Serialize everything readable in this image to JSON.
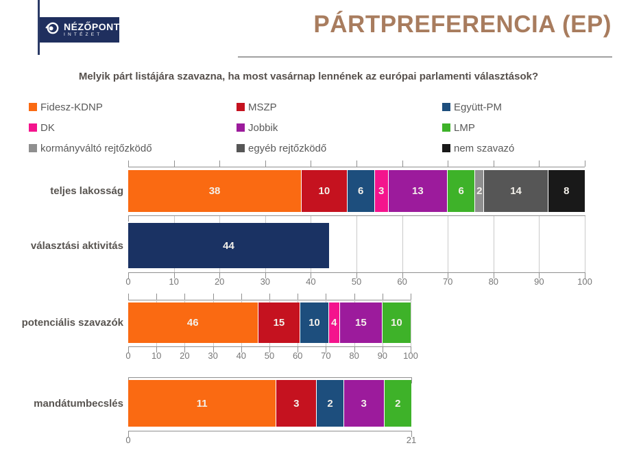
{
  "header": {
    "logo_line1": "NÉZŐPONT",
    "logo_line2": "INTÉZET",
    "title": "PÁRTPREFERENCIA (EP)"
  },
  "subtitle": "Melyik párt listájára szavazna, ha most vasárnap lennének az európai parlamenti választások?",
  "colors": {
    "fidesz": "#fa6a12",
    "mszp": "#c5121f",
    "egyutt_pm": "#1d4e7d",
    "dk": "#f4148d",
    "jobbik": "#9c1b9c",
    "lmp": "#3eb229",
    "kormanyvalto": "#8f8f8f",
    "egyeb": "#565656",
    "nem_szavazo": "#191919",
    "turnout_navy": "#1a3263",
    "title_brown": "#a87c5e",
    "logo_navy": "#1f2f5e"
  },
  "legend": [
    {
      "label": "Fidesz-KDNP",
      "color": "#fa6a12"
    },
    {
      "label": "MSZP",
      "color": "#c5121f"
    },
    {
      "label": "Együtt-PM",
      "color": "#1d4e7d"
    },
    {
      "label": "DK",
      "color": "#f4148d"
    },
    {
      "label": "Jobbik",
      "color": "#9c1b9c"
    },
    {
      "label": "LMP",
      "color": "#3eb229"
    },
    {
      "label": "kormányváltó rejtőzködő",
      "color": "#8f8f8f"
    },
    {
      "label": "egyéb rejtőzködő",
      "color": "#565656"
    },
    {
      "label": "nem szavazó",
      "color": "#191919"
    }
  ],
  "chart_data": [
    {
      "type": "bar",
      "orientation": "horizontal-stacked",
      "category": "teljes lakosság",
      "axis": {
        "min": 0,
        "max": 100,
        "tick_step": 10,
        "labels_visible": false
      },
      "segments": [
        {
          "name": "Fidesz-KDNP",
          "value": 38,
          "color": "#fa6a12"
        },
        {
          "name": "MSZP",
          "value": 10,
          "color": "#c5121f"
        },
        {
          "name": "Együtt-PM",
          "value": 6,
          "color": "#1d4e7d"
        },
        {
          "name": "DK",
          "value": 3,
          "color": "#f4148d"
        },
        {
          "name": "Jobbik",
          "value": 13,
          "color": "#9c1b9c"
        },
        {
          "name": "LMP",
          "value": 6,
          "color": "#3eb229"
        },
        {
          "name": "kormányváltó rejtőzködő",
          "value": 2,
          "color": "#8f8f8f"
        },
        {
          "name": "egyéb rejtőzködő",
          "value": 14,
          "color": "#565656"
        },
        {
          "name": "nem szavazó",
          "value": 8,
          "color": "#191919"
        }
      ]
    },
    {
      "type": "bar",
      "orientation": "horizontal-stacked",
      "category": "választási aktivitás",
      "axis": {
        "min": 0,
        "max": 100,
        "tick_step": 10,
        "labels_visible": true,
        "tick_labels": [
          "0",
          "10",
          "20",
          "30",
          "40",
          "50",
          "60",
          "70",
          "80",
          "90",
          "100"
        ]
      },
      "segments": [
        {
          "name": "választási aktivitás",
          "value": 44,
          "color": "#1a3263"
        }
      ]
    },
    {
      "type": "bar",
      "orientation": "horizontal-stacked",
      "category": "potenciális szavazók",
      "axis": {
        "min": 0,
        "max": 100,
        "tick_step": 10,
        "labels_visible": true,
        "tick_labels": [
          "0",
          "10",
          "20",
          "30",
          "40",
          "50",
          "60",
          "70",
          "80",
          "90",
          "100"
        ]
      },
      "segments": [
        {
          "name": "Fidesz-KDNP",
          "value": 46,
          "color": "#fa6a12"
        },
        {
          "name": "MSZP",
          "value": 15,
          "color": "#c5121f"
        },
        {
          "name": "Együtt-PM",
          "value": 10,
          "color": "#1d4e7d"
        },
        {
          "name": "DK",
          "value": 4,
          "color": "#f4148d"
        },
        {
          "name": "Jobbik",
          "value": 15,
          "color": "#9c1b9c"
        },
        {
          "name": "LMP",
          "value": 10,
          "color": "#3eb229"
        }
      ]
    },
    {
      "type": "bar",
      "orientation": "horizontal-stacked",
      "category": "mandátumbecslés",
      "axis": {
        "min": 0,
        "max": 21,
        "labels_visible": true,
        "tick_labels": [
          "0",
          "21"
        ]
      },
      "segments": [
        {
          "name": "Fidesz-KDNP",
          "value": 11,
          "color": "#fa6a12"
        },
        {
          "name": "MSZP",
          "value": 3,
          "color": "#c5121f"
        },
        {
          "name": "Együtt-PM",
          "value": 2,
          "color": "#1d4e7d"
        },
        {
          "name": "Jobbik",
          "value": 3,
          "color": "#9c1b9c"
        },
        {
          "name": "LMP",
          "value": 2,
          "color": "#3eb229"
        }
      ]
    }
  ]
}
